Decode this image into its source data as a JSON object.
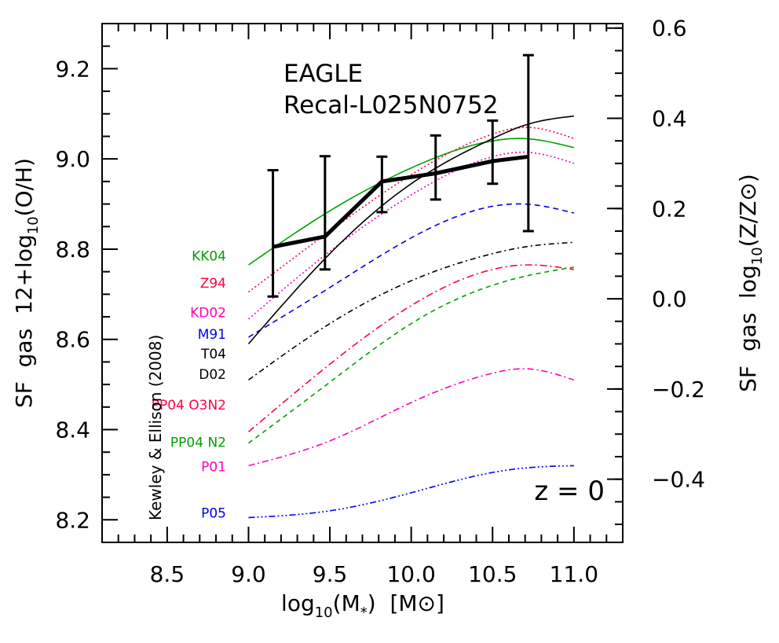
{
  "chart_data": {
    "type": "line",
    "title": "EAGLE",
    "subtitle": "Recal-L025N0752",
    "annotation_redshift": "z = 0",
    "xlabel": {
      "pre": "log",
      "sub": "10",
      "mid": "(M",
      "sub2": "*",
      "post": ")  [M",
      "sym": "⊙",
      "end": "]"
    },
    "ylabel": {
      "pre": "SF  gas  12+log",
      "sub": "10",
      "post": "(O/H)"
    },
    "ylabel_right": {
      "pre": "SF  gas  log",
      "sub": "10",
      "mid": "(Z/Z",
      "sym": "⊙",
      "end": ")"
    },
    "xlim": [
      8.1,
      11.3
    ],
    "ylim": [
      8.15,
      9.3
    ],
    "x_ticks": [
      8.5,
      9.0,
      9.5,
      10.0,
      10.5,
      11.0
    ],
    "x_tick_labels": [
      "8.5",
      "9.0",
      "9.5",
      "10.0",
      "10.5",
      "11.0"
    ],
    "y_ticks": [
      8.2,
      8.4,
      8.6,
      8.8,
      9.0,
      9.2
    ],
    "y_tick_labels": [
      "8.2",
      "8.4",
      "8.6",
      "8.8",
      "9.0",
      "9.2"
    ],
    "y2_ticks": [
      -0.4,
      -0.2,
      0.0,
      0.2,
      0.4,
      0.6
    ],
    "y2_tick_labels": [
      "−0.4",
      "−0.2",
      "0.0",
      "0.2",
      "0.4",
      "0.6"
    ],
    "y2_offset": 8.69,
    "reference_label": "Kewley & Ellison (2008)",
    "eagle_series": {
      "name": "EAGLE Recal-L025N0752",
      "x": [
        9.15,
        9.47,
        9.82,
        10.15,
        10.5,
        10.72
      ],
      "y": [
        8.805,
        8.828,
        8.95,
        8.968,
        8.995,
        9.005
      ],
      "y_low": [
        8.695,
        8.755,
        8.882,
        8.91,
        8.945,
        8.84
      ],
      "y_high": [
        8.975,
        9.006,
        9.005,
        9.052,
        9.085,
        9.23
      ]
    },
    "calibrations": [
      {
        "name": "KK04",
        "color": "#00a000",
        "dash": "",
        "x": [
          9.0,
          9.5,
          10.0,
          10.5,
          10.7,
          11.0
        ],
        "y": [
          8.765,
          8.885,
          8.98,
          9.04,
          9.045,
          9.025
        ]
      },
      {
        "name": "Z94",
        "color": "#ff0044",
        "dash": "2,3",
        "x": [
          9.0,
          9.5,
          10.0,
          10.5,
          10.7,
          11.0
        ],
        "y": [
          8.705,
          8.84,
          8.965,
          9.055,
          9.07,
          9.045
        ]
      },
      {
        "name": "KD02",
        "color": "#ff00bb",
        "dash": "2,3",
        "x": [
          9.0,
          9.5,
          10.0,
          10.5,
          10.7,
          11.0
        ],
        "y": [
          8.645,
          8.795,
          8.92,
          9.005,
          9.015,
          8.99
        ]
      },
      {
        "name": "M91",
        "color": "#0000ee",
        "dash": "7,5",
        "x": [
          9.0,
          9.5,
          10.0,
          10.5,
          10.7,
          11.0
        ],
        "y": [
          8.605,
          8.715,
          8.825,
          8.895,
          8.9,
          8.88
        ]
      },
      {
        "name": "T04",
        "color": "#000000",
        "dash": "",
        "x": [
          9.0,
          9.5,
          10.0,
          10.5,
          10.7,
          11.0
        ],
        "y": [
          8.59,
          8.79,
          8.945,
          9.045,
          9.075,
          9.095
        ]
      },
      {
        "name": "D02",
        "color": "#000000",
        "dash": "7,4,2,4",
        "x": [
          9.0,
          9.5,
          10.0,
          10.5,
          10.7,
          11.0
        ],
        "y": [
          8.51,
          8.635,
          8.73,
          8.79,
          8.805,
          8.815
        ]
      },
      {
        "name": "PP04 O3N2",
        "color": "#ff0044",
        "dash": "9,4,2,4",
        "x": [
          9.0,
          9.5,
          10.0,
          10.5,
          10.7,
          11.0
        ],
        "y": [
          8.395,
          8.545,
          8.675,
          8.755,
          8.765,
          8.755
        ]
      },
      {
        "name": "PP04 N2",
        "color": "#00a000",
        "dash": "6,5",
        "x": [
          9.0,
          9.5,
          10.0,
          10.5,
          10.7,
          11.0
        ],
        "y": [
          8.37,
          8.505,
          8.635,
          8.72,
          8.74,
          8.76
        ]
      },
      {
        "name": "P01",
        "color": "#ff00bb",
        "dash": "8,4,2,4",
        "x": [
          9.0,
          9.5,
          10.0,
          10.5,
          10.7,
          11.0
        ],
        "y": [
          8.32,
          8.375,
          8.46,
          8.525,
          8.535,
          8.51
        ]
      },
      {
        "name": "P05",
        "color": "#0000ee",
        "dash": "8,3,2,3,2,3,2,3",
        "x": [
          9.0,
          9.5,
          10.0,
          10.5,
          10.7,
          11.0
        ],
        "y": [
          8.205,
          8.22,
          8.26,
          8.305,
          8.315,
          8.32
        ]
      }
    ]
  }
}
